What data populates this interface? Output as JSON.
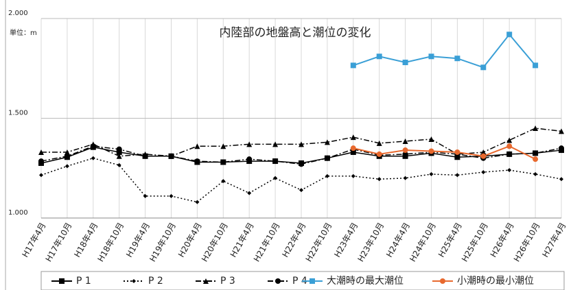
{
  "chart_data": {
    "type": "line",
    "title": "内陸部の地盤高と潮位の変化",
    "unit_label": "単位：m",
    "categories": [
      "H17年4月",
      "H17年10月",
      "H18年4月",
      "H18年10月",
      "H19年4月",
      "H19年10月",
      "H20年4月",
      "H20年10月",
      "H21年4月",
      "H21年10月",
      "H22年4月",
      "H22年10月",
      "H23年4月",
      "H23年10月",
      "H24年4月",
      "H24年10月",
      "H25年4月",
      "H25年10月",
      "H26年4月",
      "H26年10月",
      "H27年4月"
    ],
    "ylim": [
      1.0,
      2.0
    ],
    "yticks": [
      {
        "value": 1.0,
        "label": "1.000"
      },
      {
        "value": 1.5,
        "label": "1.500"
      },
      {
        "value": 2.0,
        "label": "2.000"
      }
    ],
    "grid": true,
    "legend": "bottom",
    "series": [
      {
        "name": "P 1",
        "color": "#000000",
        "dash": "solid",
        "marker": "square",
        "values": [
          1.275,
          1.305,
          1.355,
          1.33,
          1.31,
          1.31,
          1.28,
          1.28,
          1.285,
          1.285,
          1.275,
          1.3,
          1.33,
          1.31,
          1.31,
          1.325,
          1.305,
          1.31,
          1.32,
          1.325,
          1.34
        ]
      },
      {
        "name": "P 2",
        "color": "#000000",
        "dash": "dotted",
        "marker": "diamond",
        "values": [
          1.215,
          1.26,
          1.3,
          1.265,
          1.11,
          1.11,
          1.08,
          1.185,
          1.125,
          1.2,
          1.14,
          1.21,
          1.21,
          1.195,
          1.2,
          1.22,
          1.215,
          1.23,
          1.24,
          1.22,
          1.195
        ]
      },
      {
        "name": "P 3",
        "color": "#000000",
        "dash": "dashdot",
        "marker": "triangle",
        "values": [
          1.33,
          1.33,
          1.37,
          1.31,
          1.32,
          1.31,
          1.36,
          1.36,
          1.37,
          1.37,
          1.37,
          1.38,
          1.405,
          1.375,
          1.385,
          1.395,
          1.32,
          1.33,
          1.39,
          1.45,
          1.435
        ]
      },
      {
        "name": "P 4",
        "color": "#000000",
        "dash": "dashdot",
        "marker": "circle",
        "values": [
          1.285,
          1.31,
          1.36,
          1.345,
          1.31,
          1.31,
          1.285,
          1.28,
          1.295,
          1.285,
          1.27,
          1.3,
          1.345,
          1.315,
          1.32,
          1.33,
          1.32,
          1.3,
          1.32,
          1.325,
          1.35
        ]
      },
      {
        "name": "大潮時の最大潮位",
        "color": "#3a9fd6",
        "dash": "solid",
        "marker": "square",
        "values": [
          null,
          null,
          null,
          null,
          null,
          null,
          null,
          null,
          null,
          null,
          null,
          null,
          1.765,
          1.81,
          1.78,
          1.81,
          1.8,
          1.755,
          1.92,
          1.765,
          null
        ]
      },
      {
        "name": "小潮時の最小潮位",
        "color": "#e8692e",
        "dash": "solid",
        "marker": "circle",
        "values": [
          null,
          null,
          null,
          null,
          null,
          null,
          null,
          null,
          null,
          null,
          null,
          null,
          1.35,
          1.32,
          1.34,
          1.335,
          1.33,
          1.31,
          1.36,
          1.295,
          null
        ]
      }
    ]
  }
}
